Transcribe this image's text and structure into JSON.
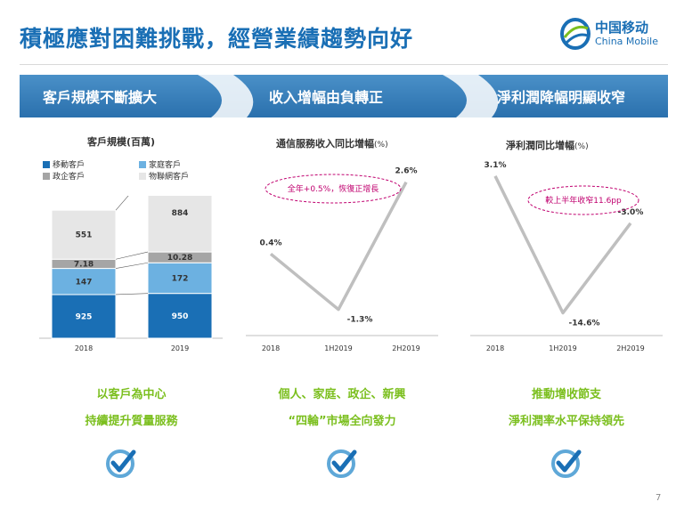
{
  "header": {
    "title": "積極應對困難挑戰，經營業績趨勢向好",
    "logo_cn": "中国移动",
    "logo_en": "China Mobile"
  },
  "banners": [
    "客戶規模不斷擴大",
    "收入增幅由負轉正",
    "淨利潤降幅明顯收窄"
  ],
  "colors": {
    "blue": "#1a6fb5",
    "light_blue": "#6cb1e1",
    "grey": "#a5a5a5",
    "light_grey": "#e6e6e6",
    "green": "#7bbf1e",
    "magenta": "#c0006f"
  },
  "chart_data": [
    {
      "type": "bar",
      "title": "客戶規模",
      "unit": "(百萬)",
      "categories": [
        "2018",
        "2019"
      ],
      "series": [
        {
          "name": "移動客戶",
          "values": [
            925,
            950
          ]
        },
        {
          "name": "家庭客戶",
          "values": [
            147,
            172
          ]
        },
        {
          "name": "政企客戶",
          "values": [
            7.18,
            10.28
          ]
        },
        {
          "name": "物聯網客戶",
          "values": [
            551,
            884
          ]
        }
      ],
      "stacked": true
    },
    {
      "type": "line",
      "title": "通信服務收入同比增幅",
      "unit": "(%)",
      "x": [
        "2018",
        "1H2019",
        "2H2019"
      ],
      "labels": [
        "0.4%",
        "-1.3%",
        "2.6%"
      ],
      "values": [
        0.4,
        -1.3,
        2.6
      ],
      "annotation": "全年+0.5%，恢復正增長"
    },
    {
      "type": "line",
      "title": "淨利潤同比增幅",
      "unit": "(%)",
      "x": [
        "2018",
        "1H2019",
        "2H2019"
      ],
      "labels": [
        "3.1%",
        "-14.6%",
        "-3.0%"
      ],
      "values": [
        3.1,
        -14.6,
        -3.0
      ],
      "annotation": "較上半年收窄11.6pp"
    }
  ],
  "summaries": [
    {
      "line1": "以客戶為中心",
      "line2": "持續提升質量服務"
    },
    {
      "line1": "個人、家庭、政企、新興",
      "line2": "“四輪”市場全向發力"
    },
    {
      "line1": "推動增收節支",
      "line2": "淨利潤率水平保持領先"
    }
  ],
  "page_number": "7"
}
